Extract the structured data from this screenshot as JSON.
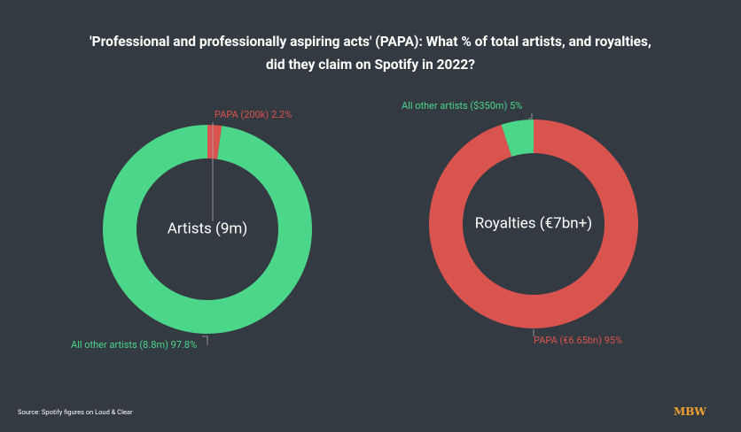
{
  "title": "'Professional and professionally aspiring acts' (PAPA): What % of total artists, and royalties, did they claim on Spotify in 2022?",
  "source": "Source: Spotify figures on Loud & Clear",
  "logo": "MBW",
  "chart_data": [
    {
      "type": "pie",
      "center_label": "Artists (9m)",
      "categories": [
        "PAPA (200k)",
        "All other artists (8.8m)"
      ],
      "values": [
        2.2,
        97.8
      ],
      "value_labels": [
        "2.2%",
        "97.8%"
      ],
      "colors": [
        "#d9534f",
        "#4cd68a"
      ]
    },
    {
      "type": "pie",
      "center_label": "Royalties (€7bn+)",
      "categories": [
        "PAPA (€6.65bn)",
        "All other artists ($350m)"
      ],
      "values": [
        95,
        5
      ],
      "value_labels": [
        "95%",
        "5%"
      ],
      "colors": [
        "#d9534f",
        "#4cd68a"
      ]
    }
  ]
}
